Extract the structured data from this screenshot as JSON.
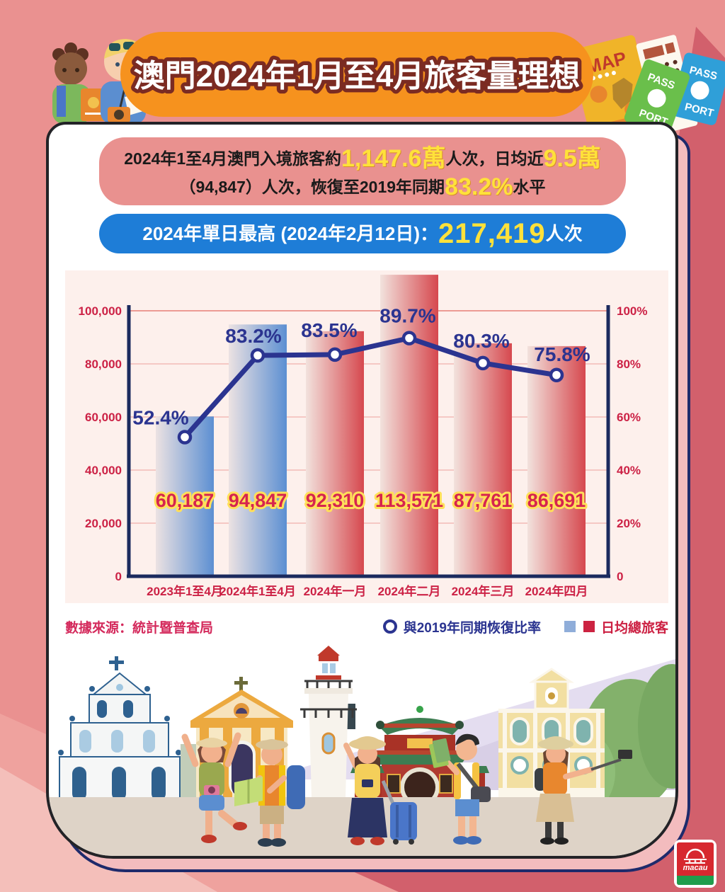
{
  "title": {
    "text": "澳門2024年1月至4月旅客量理想"
  },
  "summary": {
    "s1": "2024年1至4月澳門入境旅客約",
    "v1": "1,147.6萬",
    "s2": "人次，日均近",
    "v2": "9.5萬",
    "s3": "（94,847）人次，恢復至2019年同期",
    "v3": "83.2%",
    "s4": "水平"
  },
  "banner2": {
    "label": "2024年單日最高 (2024年2月12日)：",
    "value": "217,419",
    "unit": "人次"
  },
  "chart_data": {
    "type": "bar",
    "categories": [
      "2023年1至4月",
      "2024年1至4月",
      "2024年一月",
      "2024年二月",
      "2024年三月",
      "2024年四月"
    ],
    "series": [
      {
        "name": "日均總旅客",
        "type": "bar",
        "values": [
          60187,
          94847,
          92310,
          113571,
          87761,
          86691
        ],
        "value_labels": [
          "60,187",
          "94,847",
          "92,310",
          "113,571",
          "87,761",
          "86,691"
        ],
        "bar_styles": [
          "blue",
          "blue",
          "red",
          "red",
          "red",
          "red"
        ]
      },
      {
        "name": "與2019年同期恢復比率",
        "type": "line",
        "values": [
          52.4,
          83.2,
          83.5,
          89.7,
          80.3,
          75.8
        ],
        "labels": [
          "52.4%",
          "83.2%",
          "83.5%",
          "89.7%",
          "80.3%",
          "75.8%"
        ]
      }
    ],
    "left_axis": {
      "ticks": [
        "100,000",
        "80,000",
        "60,000",
        "40,000",
        "20,000",
        "0"
      ],
      "max": 100000
    },
    "right_axis": {
      "ticks": [
        "100%",
        "80%",
        "60%",
        "40%",
        "20%",
        "0"
      ],
      "max": 100
    },
    "legend": [
      {
        "label": "與2019年同期恢復比率",
        "marker": "circle"
      },
      {
        "label": "日均總旅客",
        "marker": "squares"
      }
    ],
    "source": "數據來源：統計暨普查局",
    "grid": true,
    "legend_position": "bottom-right"
  },
  "decor": {
    "map_label": "MAP",
    "pass_label": "PASS",
    "port_label": "PORT",
    "pass2_label": "PASS",
    "port2_label": "PORT"
  },
  "logo": {
    "text": "macau"
  },
  "colors": {
    "page_bg": "#ea9190",
    "banner_orange": "#f6921e",
    "banner_blue": "#1e7dd7",
    "summary_bg": "#e9918f",
    "highlight_yellow": "#ffe13a",
    "navy_line": "#2b3490",
    "crimson": "#cc2143",
    "bar_blue": "#5c8fd2",
    "bar_red": "#d6484e",
    "chart_bg": "#fdf0ec"
  }
}
